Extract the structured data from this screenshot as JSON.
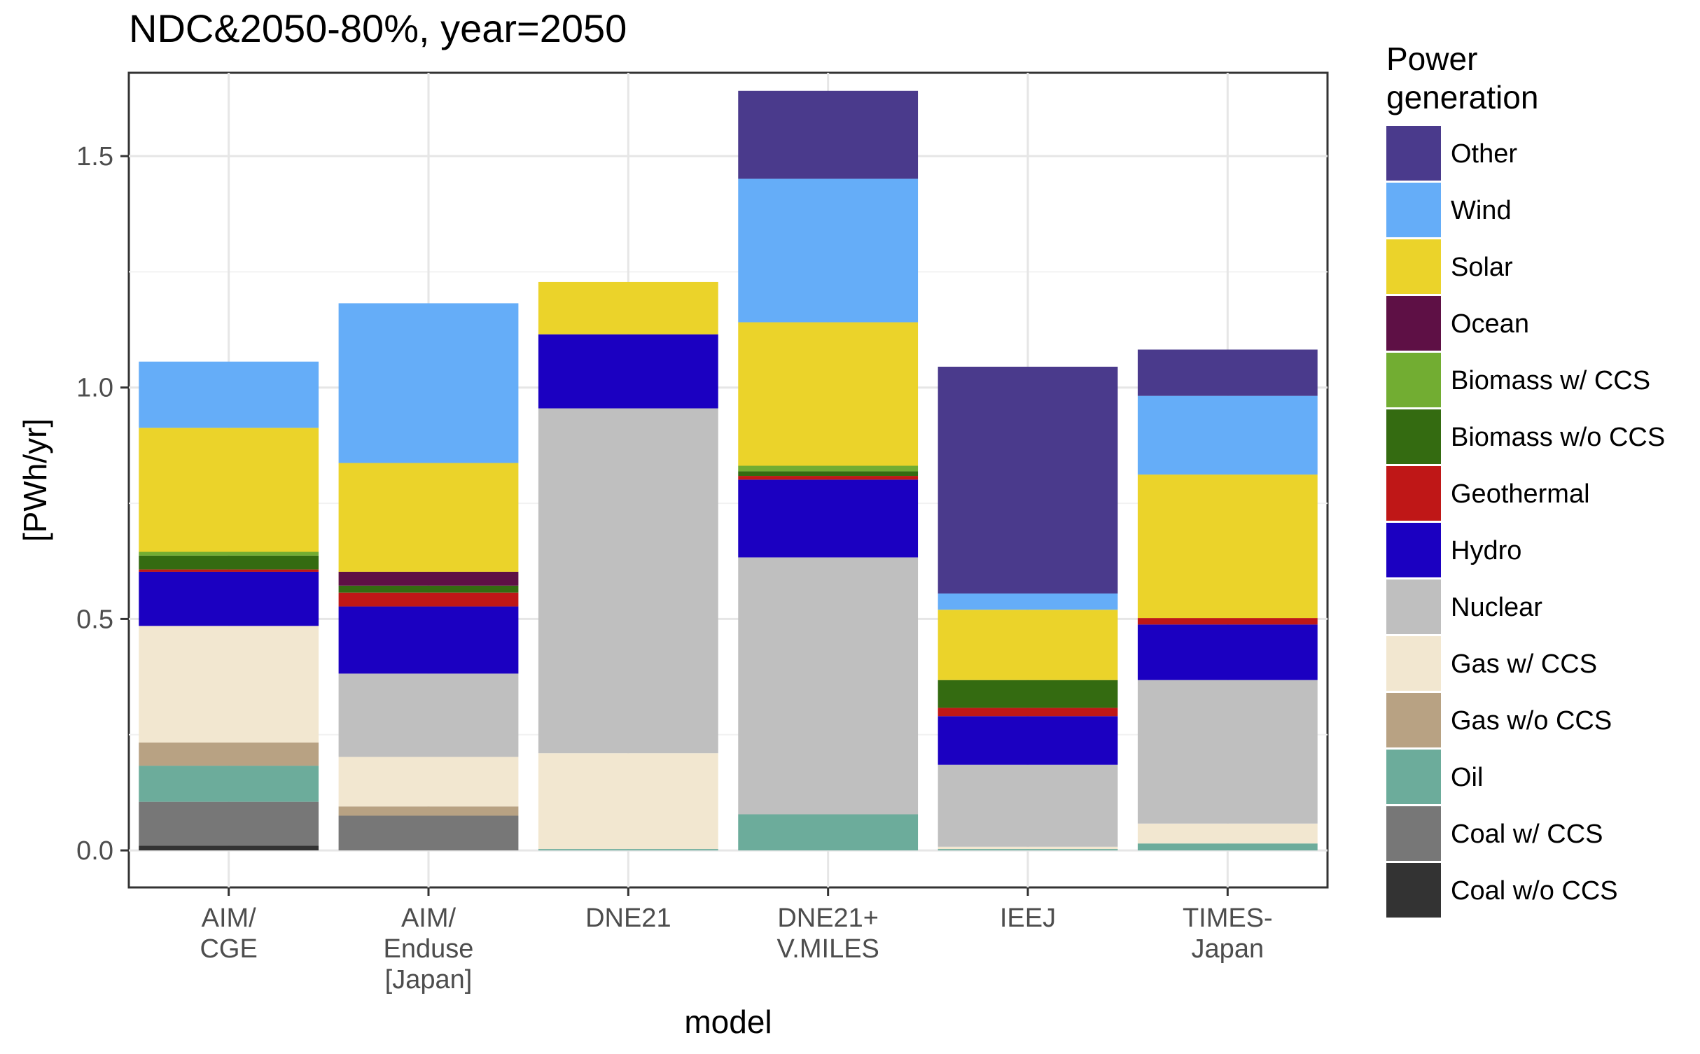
{
  "chart_data": {
    "type": "bar",
    "stacked": true,
    "title": "NDC&2050-80%, year=2050",
    "xlabel": "model",
    "ylabel": "[PWh/yr]",
    "ylim": [
      -0.08,
      1.68
    ],
    "yticks": [
      0.0,
      0.5,
      1.0,
      1.5
    ],
    "ytick_labels": [
      "0.0",
      "0.5",
      "1.0",
      "1.5"
    ],
    "grid": true,
    "legend_position": "right",
    "legend_title_lines": [
      "Power",
      "generation"
    ],
    "categories": [
      {
        "id": "aim-cge",
        "lines": [
          "AIM/",
          "CGE"
        ]
      },
      {
        "id": "aim-enduse",
        "lines": [
          "AIM/",
          "Enduse",
          "[Japan]"
        ]
      },
      {
        "id": "dne21",
        "lines": [
          "DNE21"
        ]
      },
      {
        "id": "dne21-vmiles",
        "lines": [
          "DNE21+",
          "V.MILES"
        ]
      },
      {
        "id": "ieej",
        "lines": [
          "IEEJ"
        ]
      },
      {
        "id": "times-japan",
        "lines": [
          "TIMES-",
          "Japan"
        ]
      }
    ],
    "series": [
      {
        "name": "Coal w/o CCS",
        "color": "#333333",
        "values": [
          0.01,
          0.0,
          0.0,
          0.0,
          0.0,
          0.0
        ]
      },
      {
        "name": "Coal w/ CCS",
        "color": "#777777",
        "values": [
          0.095,
          0.075,
          0.0,
          0.0,
          0.0,
          0.0
        ]
      },
      {
        "name": "Oil",
        "color": "#6cac9b",
        "values": [
          0.078,
          0.0,
          0.003,
          0.078,
          0.003,
          0.015
        ]
      },
      {
        "name": "Gas w/o CCS",
        "color": "#b8a283",
        "values": [
          0.05,
          0.02,
          0.0,
          0.0,
          0.0,
          0.0
        ]
      },
      {
        "name": "Gas w/ CCS",
        "color": "#f2e7d0",
        "values": [
          0.252,
          0.107,
          0.207,
          0.0,
          0.005,
          0.043
        ]
      },
      {
        "name": "Nuclear",
        "color": "#bfbfbf",
        "values": [
          0.0,
          0.18,
          0.745,
          0.555,
          0.177,
          0.31
        ]
      },
      {
        "name": "Hydro",
        "color": "#1b00c1",
        "values": [
          0.117,
          0.145,
          0.16,
          0.168,
          0.105,
          0.12
        ]
      },
      {
        "name": "Geothermal",
        "color": "#bf1717",
        "values": [
          0.005,
          0.03,
          0.0,
          0.008,
          0.018,
          0.014
        ]
      },
      {
        "name": "Biomass w/o CCS",
        "color": "#346b11",
        "values": [
          0.03,
          0.015,
          0.0,
          0.01,
          0.06,
          0.0
        ]
      },
      {
        "name": "Biomass w/ CCS",
        "color": "#72ad32",
        "values": [
          0.008,
          0.0,
          0.0,
          0.012,
          0.0,
          0.0
        ]
      },
      {
        "name": "Ocean",
        "color": "#5e1045",
        "values": [
          0.0,
          0.03,
          0.0,
          0.0,
          0.0,
          0.0
        ]
      },
      {
        "name": "Solar",
        "color": "#ebd32a",
        "values": [
          0.268,
          0.235,
          0.113,
          0.31,
          0.152,
          0.31
        ]
      },
      {
        "name": "Wind",
        "color": "#65adf8",
        "values": [
          0.143,
          0.345,
          0.0,
          0.31,
          0.035,
          0.17
        ]
      },
      {
        "name": "Other",
        "color": "#4a3a8c",
        "values": [
          0.0,
          0.0,
          0.0,
          0.19,
          0.49,
          0.1
        ]
      }
    ]
  }
}
